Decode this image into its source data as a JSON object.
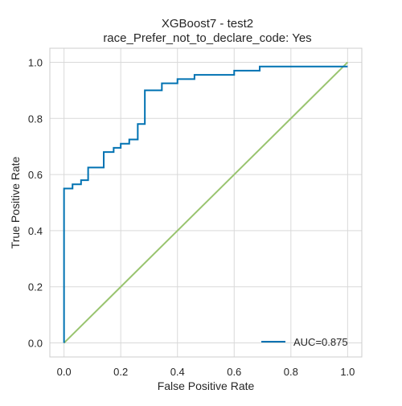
{
  "chart_data": {
    "type": "line",
    "title": "XGBoost7 - test2",
    "subtitle": "race_Prefer_not_to_declare_code: Yes",
    "xlabel": "False Positive Rate",
    "ylabel": "True Positive Rate",
    "xlim": [
      -0.05,
      1.05
    ],
    "ylim": [
      -0.05,
      1.05
    ],
    "xticks": [
      0.0,
      0.2,
      0.4,
      0.6,
      0.8,
      1.0
    ],
    "xtick_labels": [
      "0.0",
      "0.2",
      "0.4",
      "0.6",
      "0.8",
      "1.0"
    ],
    "yticks": [
      0.0,
      0.2,
      0.4,
      0.6,
      0.8,
      1.0
    ],
    "ytick_labels": [
      "0.0",
      "0.2",
      "0.4",
      "0.6",
      "0.8",
      "1.0"
    ],
    "grid": true,
    "legend_position": "lower-right",
    "series": [
      {
        "name": "AUC=0.875",
        "color": "#0072b2",
        "x": [
          0.0,
          0.0,
          0.03,
          0.03,
          0.06,
          0.06,
          0.085,
          0.085,
          0.14,
          0.14,
          0.175,
          0.175,
          0.2,
          0.2,
          0.23,
          0.23,
          0.26,
          0.26,
          0.285,
          0.285,
          0.345,
          0.345,
          0.4,
          0.4,
          0.46,
          0.46,
          0.6,
          0.6,
          0.69,
          0.69,
          1.0
        ],
        "y": [
          0.0,
          0.55,
          0.55,
          0.565,
          0.565,
          0.58,
          0.58,
          0.625,
          0.625,
          0.68,
          0.68,
          0.695,
          0.695,
          0.71,
          0.71,
          0.725,
          0.725,
          0.78,
          0.78,
          0.9,
          0.9,
          0.925,
          0.925,
          0.94,
          0.94,
          0.955,
          0.955,
          0.97,
          0.97,
          0.985,
          0.985
        ]
      },
      {
        "name": "",
        "color": "#99c46f",
        "x": [
          0.0,
          1.0
        ],
        "y": [
          0.0,
          1.0
        ]
      }
    ]
  }
}
